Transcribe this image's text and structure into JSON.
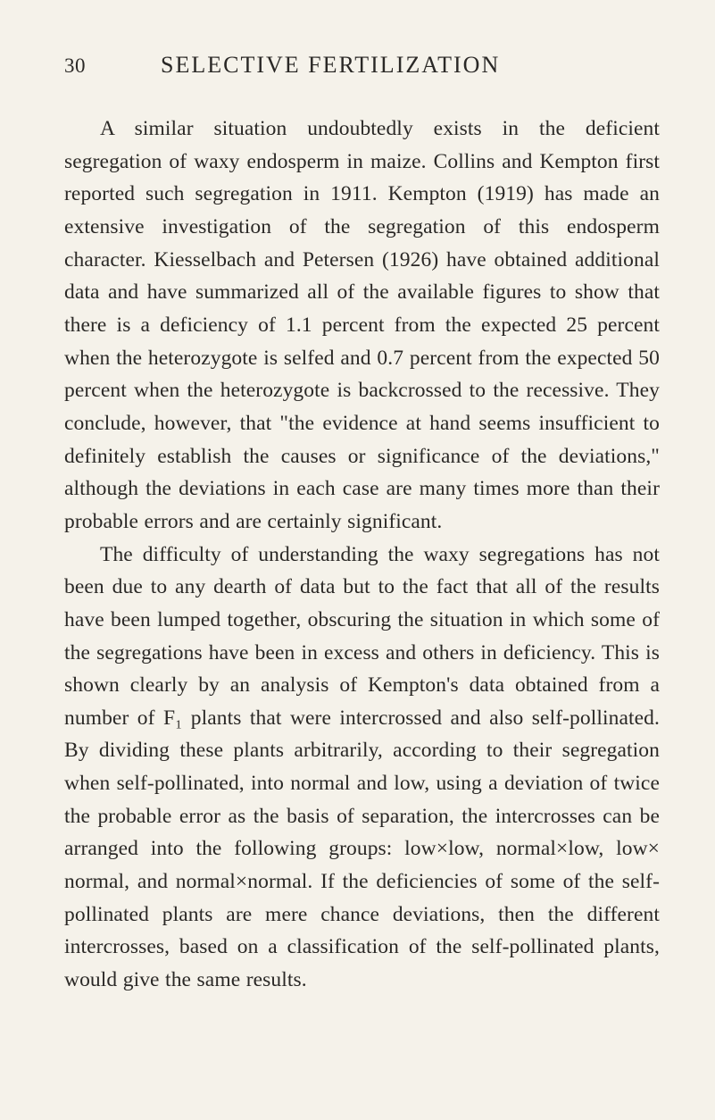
{
  "page_number": "30",
  "header_title": "SELECTIVE FERTILIZATION",
  "paragraphs": [
    "A similar situation undoubtedly exists in the deficient segregation of waxy endosperm in maize. Collins and Kempton first reported such segregation in 1911. Kempton (1919) has made an extensive investigation of the segregation of this endosperm character. Kiesselbach and Petersen (1926) have obtained additional data and have summarized all of the available figures to show that there is a deficiency of 1.1 percent from the expected 25 percent when the heterozygote is selfed and 0.7 percent from the expected 50 percent when the heterozygote is backcrossed to the recessive. They conclude, however, that \"the evidence at hand seems insufficient to definitely establish the causes or significance of the deviations,\" although the deviations in each case are many times more than their probable errors and are certainly significant.",
    "The difficulty of understanding the waxy segregations has not been due to any dearth of data but to the fact that all of the results have been lumped together, obscuring the situation in which some of the segregations have been in excess and others in deficiency. This is shown clearly by an analysis of Kempton's data obtained from a number of F₁ plants that were intercrossed and also self-pollinated. By dividing these plants arbitrarily, according to their segregation when self-pollinated, into normal and low, using a deviation of twice the probable error as the basis of separation, the intercrosses can be arranged into the following groups: low×low, normal×low, low× normal, and normal×normal. If the deficiencies of some of the self-pollinated plants are mere chance deviations, then the different intercrosses, based on a classification of the self-pollinated plants, would give the same results."
  ]
}
